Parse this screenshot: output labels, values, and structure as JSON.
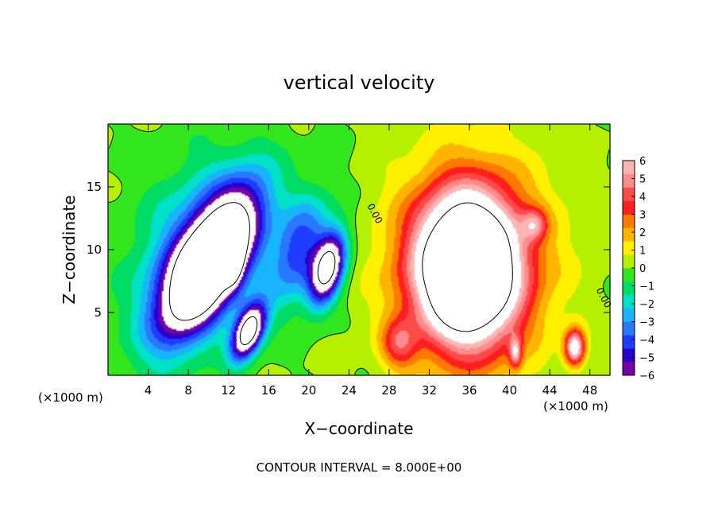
{
  "chart_data": {
    "type": "heatmap",
    "title": "vertical velocity",
    "xlabel": "X−coordinate",
    "ylabel": "Z−coordinate",
    "x_unit_left": "(×1000 m)",
    "x_unit_right": "(×1000 m)",
    "footer": "CONTOUR INTERVAL = 8.000E+00",
    "xlim": [
      0,
      50
    ],
    "ylim": [
      0,
      20
    ],
    "x_ticks": [
      4,
      8,
      12,
      16,
      20,
      24,
      28,
      32,
      36,
      40,
      44,
      48
    ],
    "y_ticks": [
      5,
      10,
      15
    ],
    "grid": false,
    "colorbar": {
      "min": -6,
      "max": 6,
      "labels": [
        "6",
        "5",
        "4",
        "3",
        "2",
        "1",
        "0",
        "−1",
        "−2",
        "−3",
        "−4",
        "−5",
        "−6"
      ],
      "colors": [
        "#7a00a8",
        "#2a00c8",
        "#1e3cff",
        "#2a78ff",
        "#19b4ff",
        "#00e1c8",
        "#00dc64",
        "#32e61e",
        "#b4f000",
        "#fff000",
        "#ffb400",
        "#ff7800",
        "#ff1e1e",
        "#ff4a4a",
        "#ff8c8c",
        "#ffb4b4"
      ]
    },
    "contour_labels": [
      "0.00",
      "0.00"
    ],
    "features": [
      {
        "kind": "downdraft",
        "cx": 10.2,
        "cz": 9.1,
        "rx": 2.8,
        "rz": 6.2,
        "rot": 38,
        "peak": -14
      },
      {
        "kind": "downdraft",
        "cx": 14.0,
        "cz": 3.5,
        "rx": 1.3,
        "rz": 2.3,
        "rot": 30,
        "peak": -10
      },
      {
        "kind": "downdraft",
        "cx": 12.6,
        "cz": 9.6,
        "rx": 0.8,
        "rz": 2.0,
        "rot": 5,
        "peak": -8
      },
      {
        "kind": "downdraft",
        "cx": 21.9,
        "cz": 8.5,
        "rx": 1.5,
        "rz": 2.9,
        "rot": 20,
        "peak": -9
      },
      {
        "kind": "downdraft",
        "cx": 19.0,
        "cz": 10.0,
        "rx": 2.5,
        "rz": 4.5,
        "rot": 25,
        "peak": -4.2
      },
      {
        "kind": "downdraft",
        "cx": 8.5,
        "cz": 9.5,
        "rx": 5.5,
        "rz": 8.0,
        "rot": 30,
        "peak": -3.0
      },
      {
        "kind": "updraft",
        "cx": 35.8,
        "cz": 8.5,
        "rx": 4.8,
        "rz": 5.6,
        "rot": 0,
        "peak": 13
      },
      {
        "kind": "updraft",
        "cx": 36.2,
        "cz": 9.0,
        "rx": 8.0,
        "rz": 8.2,
        "rot": 0,
        "peak": 3.4
      },
      {
        "kind": "updraft",
        "cx": 42.5,
        "cz": 12.0,
        "rx": 1.2,
        "rz": 1.2,
        "rot": 0,
        "peak": 3.0
      },
      {
        "kind": "updraft",
        "cx": 46.5,
        "cz": 2.2,
        "rx": 1.0,
        "rz": 1.4,
        "rot": 0,
        "peak": 7
      },
      {
        "kind": "updraft",
        "cx": 40.6,
        "cz": 1.8,
        "rx": 0.6,
        "rz": 1.2,
        "rot": 0,
        "peak": 4
      },
      {
        "kind": "updraft",
        "cx": 29.0,
        "cz": 2.5,
        "rx": 1.8,
        "rz": 2.0,
        "rot": 0,
        "peak": 3.2
      }
    ]
  }
}
